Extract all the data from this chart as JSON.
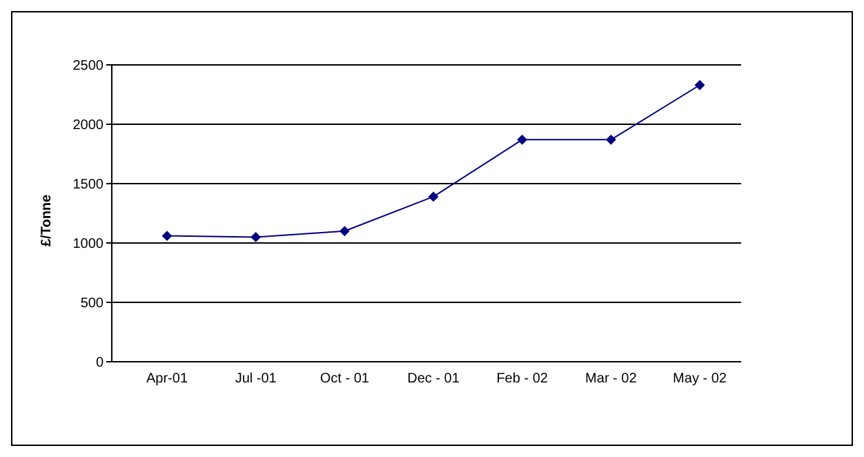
{
  "chart_data": {
    "type": "line",
    "ylabel": "£/Tonne",
    "categories": [
      "Apr-01",
      "Jul -01",
      "Oct - 01",
      "Dec  - 01",
      "Feb - 02",
      "Mar - 02",
      "May - 02"
    ],
    "series": [
      {
        "color": "#000080",
        "values": [
          1060,
          1050,
          1100,
          1390,
          1870,
          1870,
          2330
        ]
      }
    ],
    "ylim": [
      0,
      2500
    ],
    "yticks": [
      0,
      500,
      1000,
      1500,
      2000,
      2500
    ],
    "grid": "y",
    "legend": false,
    "marker": "diamond"
  }
}
